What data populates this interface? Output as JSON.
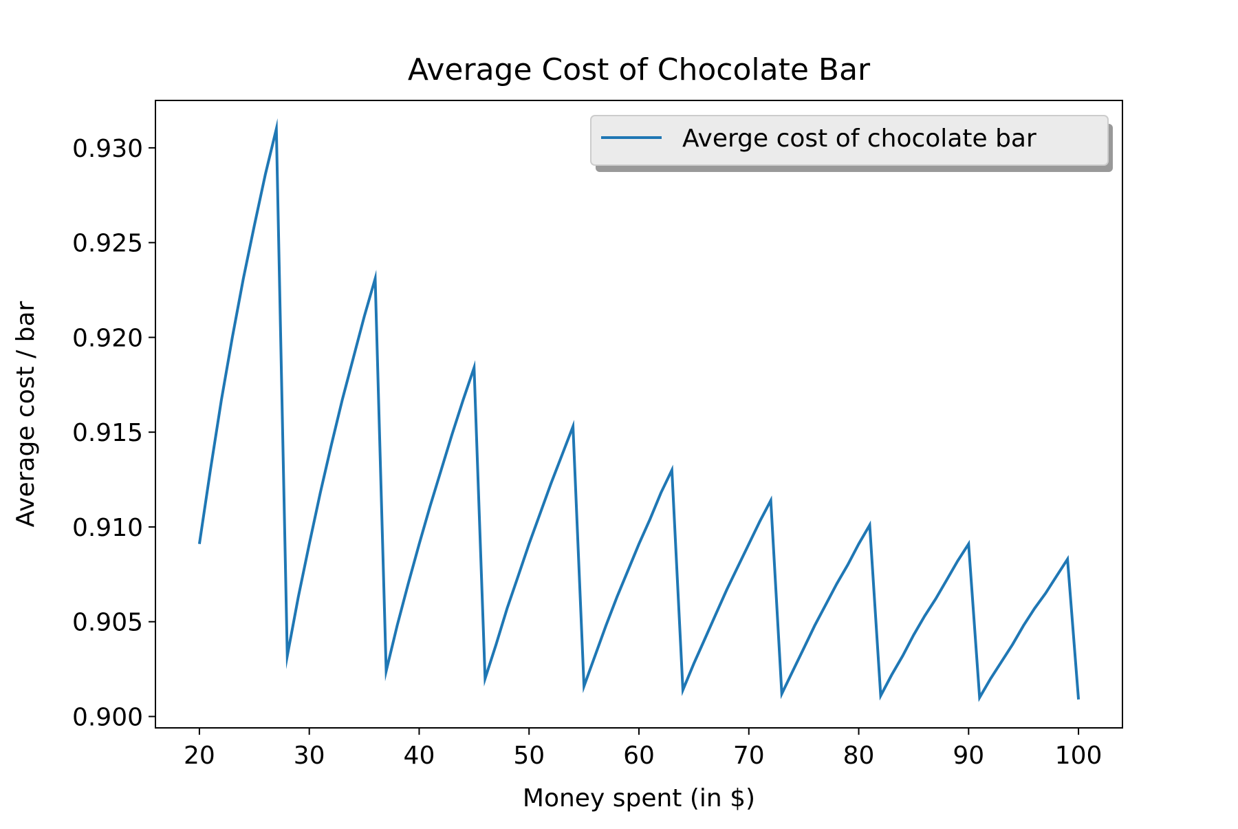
{
  "chart_data": {
    "type": "line",
    "title": "Average Cost of Chocolate Bar",
    "xlabel": "Money spent (in $)",
    "ylabel": "Average cost / bar",
    "xlim": [
      16,
      104
    ],
    "ylim": [
      0.8994,
      0.9325
    ],
    "x_ticks": [
      20,
      30,
      40,
      50,
      60,
      70,
      80,
      90,
      100
    ],
    "y_ticks": [
      0.9,
      0.905,
      0.91,
      0.915,
      0.92,
      0.925,
      0.93
    ],
    "x_tick_labels": [
      "20",
      "30",
      "40",
      "50",
      "60",
      "70",
      "80",
      "90",
      "100"
    ],
    "y_tick_labels": [
      "0.900",
      "0.905",
      "0.910",
      "0.915",
      "0.920",
      "0.925",
      "0.930"
    ],
    "grid": false,
    "legend": {
      "placement": "upper-right",
      "entries": [
        "Averge cost of chocolate bar"
      ]
    },
    "series": [
      {
        "name": "Averge cost of chocolate bar",
        "color": "#1f77b4",
        "x": [
          20,
          21,
          22,
          23,
          24,
          25,
          26,
          27,
          28,
          29,
          30,
          31,
          32,
          33,
          34,
          35,
          36,
          37,
          38,
          39,
          40,
          41,
          42,
          43,
          44,
          45,
          46,
          47,
          48,
          49,
          50,
          51,
          52,
          53,
          54,
          55,
          56,
          57,
          58,
          59,
          60,
          61,
          62,
          63,
          64,
          65,
          66,
          67,
          68,
          69,
          70,
          71,
          72,
          73,
          74,
          75,
          76,
          77,
          78,
          79,
          80,
          81,
          82,
          83,
          84,
          85,
          86,
          87,
          88,
          89,
          90,
          91,
          92,
          93,
          94,
          95,
          96,
          97,
          98,
          99,
          100
        ],
        "y": [
          0.9091,
          0.913,
          0.9167,
          0.92,
          0.9231,
          0.9259,
          0.9286,
          0.931,
          0.9032,
          0.9063,
          0.9091,
          0.9118,
          0.9143,
          0.9167,
          0.9189,
          0.9211,
          0.9231,
          0.9024,
          0.9048,
          0.907,
          0.9091,
          0.9111,
          0.913,
          0.9149,
          0.9167,
          0.9184,
          0.902,
          0.9038,
          0.9057,
          0.9074,
          0.9091,
          0.9107,
          0.9123,
          0.9138,
          0.9153,
          0.9016,
          0.9032,
          0.9048,
          0.9063,
          0.9077,
          0.9091,
          0.9104,
          0.9118,
          0.913,
          0.9014,
          0.9028,
          0.9041,
          0.9054,
          0.9067,
          0.9079,
          0.9091,
          0.9103,
          0.9114,
          0.9012,
          0.9024,
          0.9036,
          0.9048,
          0.9059,
          0.907,
          0.908,
          0.9091,
          0.9101,
          0.9011,
          0.9022,
          0.9032,
          0.9043,
          0.9053,
          0.9062,
          0.9072,
          0.9082,
          0.9091,
          0.901,
          0.902,
          0.9029,
          0.9038,
          0.9048,
          0.9057,
          0.9065,
          0.9074,
          0.9083,
          0.9009
        ]
      }
    ]
  }
}
